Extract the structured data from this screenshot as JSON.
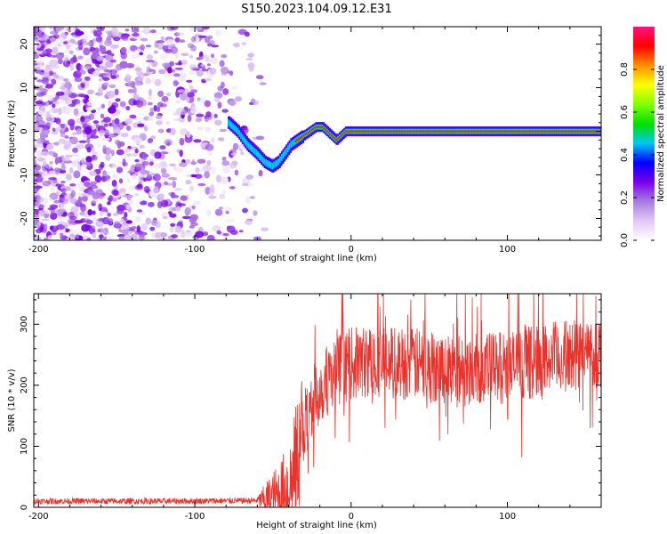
{
  "title": "S150.2023.104.09.12.E31",
  "chart_data": [
    {
      "type": "heatmap",
      "name": "spectrogram",
      "xlabel": "Height of straight line (km)",
      "ylabel": "Frequency (Hz)",
      "xlim": [
        -203,
        160
      ],
      "ylim": [
        -25,
        24
      ],
      "xticks": [
        -200,
        -100,
        0,
        100
      ],
      "yticks": [
        -20,
        -10,
        0,
        10,
        20
      ],
      "ridge_x": [
        -78,
        -72,
        -66,
        -60,
        -55,
        -50,
        -46,
        -42,
        -38,
        -34,
        -30,
        -26,
        -22,
        -18,
        -15,
        -12,
        -9,
        -6,
        -3,
        0,
        160
      ],
      "ridge_y": [
        2,
        0,
        -3,
        -5,
        -7,
        -8,
        -7,
        -5,
        -3,
        -2,
        -1,
        0,
        1,
        1,
        0,
        -1,
        -2,
        -1,
        0,
        0,
        0
      ],
      "colorbar": {
        "label": "Normalized spectral amplitude",
        "range": [
          0,
          1
        ],
        "ticks": [
          "0.0",
          "0.2",
          "0.4",
          "0.6",
          "0.8"
        ],
        "colors": [
          "#ffffff",
          "#e2c8f4",
          "#a77ce0",
          "#7a00ea",
          "#0000ff",
          "#00c8f0",
          "#00e000",
          "#80ff00",
          "#ffff00",
          "#ff9000",
          "#ff0000",
          "#ff1080"
        ]
      }
    },
    {
      "type": "line",
      "name": "snr",
      "xlabel": "Height of straight line (km)",
      "ylabel": "SNR (10 * v/v)",
      "xlim": [
        -203,
        160
      ],
      "ylim": [
        0,
        350
      ],
      "xticks": [
        -200,
        -100,
        0,
        100
      ],
      "yticks": [
        0,
        100,
        200,
        300
      ],
      "color": "#e8322b",
      "envelope_x": [
        -203,
        -120,
        -60,
        -45,
        -38,
        -33,
        -28,
        -22,
        -15,
        -8,
        0,
        15,
        40,
        70,
        100,
        130,
        160
      ],
      "envelope_y": [
        10,
        10,
        11,
        18,
        40,
        100,
        150,
        185,
        210,
        225,
        235,
        240,
        235,
        225,
        230,
        245,
        255
      ]
    }
  ]
}
